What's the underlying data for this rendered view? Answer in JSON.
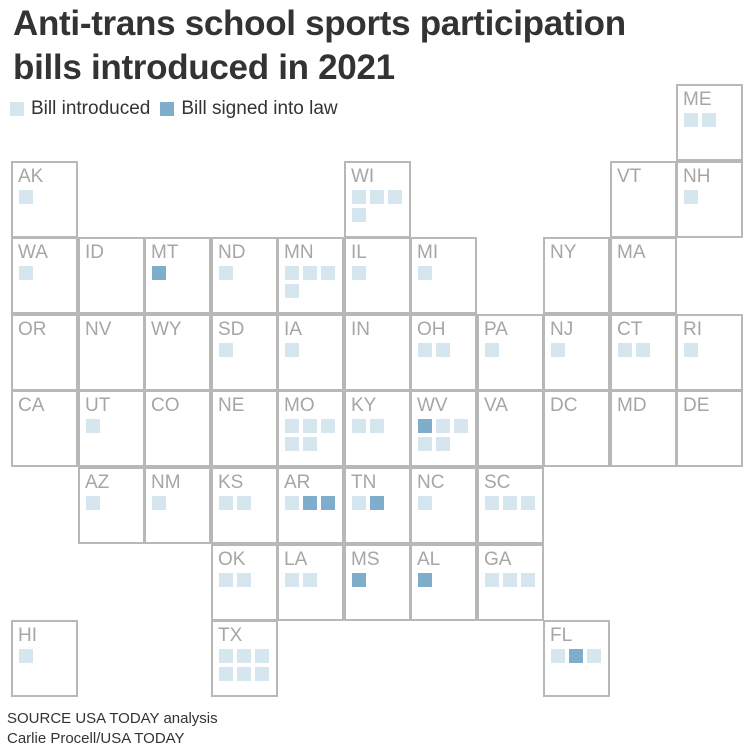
{
  "title": "Anti-trans school sports participation bills introduced in 2021",
  "legend": {
    "introduced": "Bill introduced",
    "signed": "Bill signed into law"
  },
  "colors": {
    "introduced": "#d6e6ee",
    "signed": "#7faecc",
    "border": "#b8b8b8",
    "label": "#a6a6a6"
  },
  "states": [
    {
      "abbr": "ME",
      "row": 0,
      "col": 10,
      "bills": [
        "i",
        "i"
      ]
    },
    {
      "abbr": "AK",
      "row": 1,
      "col": 0,
      "bills": [
        "i"
      ]
    },
    {
      "abbr": "WI",
      "row": 1,
      "col": 5,
      "bills": [
        "i",
        "i",
        "i",
        "i"
      ]
    },
    {
      "abbr": "VT",
      "row": 1,
      "col": 9,
      "bills": []
    },
    {
      "abbr": "NH",
      "row": 1,
      "col": 10,
      "bills": [
        "i"
      ]
    },
    {
      "abbr": "WA",
      "row": 2,
      "col": 0,
      "bills": [
        "i"
      ]
    },
    {
      "abbr": "ID",
      "row": 2,
      "col": 1,
      "bills": []
    },
    {
      "abbr": "MT",
      "row": 2,
      "col": 2,
      "bills": [
        "s"
      ]
    },
    {
      "abbr": "ND",
      "row": 2,
      "col": 3,
      "bills": [
        "i"
      ]
    },
    {
      "abbr": "MN",
      "row": 2,
      "col": 4,
      "bills": [
        "i",
        "i",
        "i",
        "i"
      ]
    },
    {
      "abbr": "IL",
      "row": 2,
      "col": 5,
      "bills": [
        "i"
      ]
    },
    {
      "abbr": "MI",
      "row": 2,
      "col": 6,
      "bills": [
        "i"
      ]
    },
    {
      "abbr": "NY",
      "row": 2,
      "col": 8,
      "bills": []
    },
    {
      "abbr": "MA",
      "row": 2,
      "col": 9,
      "bills": []
    },
    {
      "abbr": "OR",
      "row": 3,
      "col": 0,
      "bills": []
    },
    {
      "abbr": "NV",
      "row": 3,
      "col": 1,
      "bills": []
    },
    {
      "abbr": "WY",
      "row": 3,
      "col": 2,
      "bills": []
    },
    {
      "abbr": "SD",
      "row": 3,
      "col": 3,
      "bills": [
        "i"
      ]
    },
    {
      "abbr": "IA",
      "row": 3,
      "col": 4,
      "bills": [
        "i"
      ]
    },
    {
      "abbr": "IN",
      "row": 3,
      "col": 5,
      "bills": []
    },
    {
      "abbr": "OH",
      "row": 3,
      "col": 6,
      "bills": [
        "i",
        "i"
      ]
    },
    {
      "abbr": "PA",
      "row": 3,
      "col": 7,
      "bills": [
        "i"
      ]
    },
    {
      "abbr": "NJ",
      "row": 3,
      "col": 8,
      "bills": [
        "i"
      ]
    },
    {
      "abbr": "CT",
      "row": 3,
      "col": 9,
      "bills": [
        "i",
        "i"
      ]
    },
    {
      "abbr": "RI",
      "row": 3,
      "col": 10,
      "bills": [
        "i"
      ]
    },
    {
      "abbr": "CA",
      "row": 4,
      "col": 0,
      "bills": []
    },
    {
      "abbr": "UT",
      "row": 4,
      "col": 1,
      "bills": [
        "i"
      ]
    },
    {
      "abbr": "CO",
      "row": 4,
      "col": 2,
      "bills": []
    },
    {
      "abbr": "NE",
      "row": 4,
      "col": 3,
      "bills": []
    },
    {
      "abbr": "MO",
      "row": 4,
      "col": 4,
      "bills": [
        "i",
        "i",
        "i",
        "i",
        "i"
      ]
    },
    {
      "abbr": "KY",
      "row": 4,
      "col": 5,
      "bills": [
        "i",
        "i"
      ]
    },
    {
      "abbr": "WV",
      "row": 4,
      "col": 6,
      "bills": [
        "s",
        "i",
        "i",
        "i",
        "i"
      ]
    },
    {
      "abbr": "VA",
      "row": 4,
      "col": 7,
      "bills": []
    },
    {
      "abbr": "DC",
      "row": 4,
      "col": 8,
      "bills": []
    },
    {
      "abbr": "MD",
      "row": 4,
      "col": 9,
      "bills": []
    },
    {
      "abbr": "DE",
      "row": 4,
      "col": 10,
      "bills": []
    },
    {
      "abbr": "AZ",
      "row": 5,
      "col": 1,
      "bills": [
        "i"
      ]
    },
    {
      "abbr": "NM",
      "row": 5,
      "col": 2,
      "bills": [
        "i"
      ]
    },
    {
      "abbr": "KS",
      "row": 5,
      "col": 3,
      "bills": [
        "i",
        "i"
      ]
    },
    {
      "abbr": "AR",
      "row": 5,
      "col": 4,
      "bills": [
        "i",
        "s",
        "s"
      ]
    },
    {
      "abbr": "TN",
      "row": 5,
      "col": 5,
      "bills": [
        "i",
        "s"
      ]
    },
    {
      "abbr": "NC",
      "row": 5,
      "col": 6,
      "bills": [
        "i"
      ]
    },
    {
      "abbr": "SC",
      "row": 5,
      "col": 7,
      "bills": [
        "i",
        "i",
        "i"
      ]
    },
    {
      "abbr": "OK",
      "row": 6,
      "col": 3,
      "bills": [
        "i",
        "i"
      ]
    },
    {
      "abbr": "LA",
      "row": 6,
      "col": 4,
      "bills": [
        "i",
        "i"
      ]
    },
    {
      "abbr": "MS",
      "row": 6,
      "col": 5,
      "bills": [
        "s"
      ]
    },
    {
      "abbr": "AL",
      "row": 6,
      "col": 6,
      "bills": [
        "s"
      ]
    },
    {
      "abbr": "GA",
      "row": 6,
      "col": 7,
      "bills": [
        "i",
        "i",
        "i"
      ]
    },
    {
      "abbr": "HI",
      "row": 7,
      "col": 0,
      "bills": [
        "i"
      ]
    },
    {
      "abbr": "TX",
      "row": 7,
      "col": 3,
      "bills": [
        "i",
        "i",
        "i",
        "i",
        "i",
        "i"
      ]
    },
    {
      "abbr": "FL",
      "row": 7,
      "col": 8,
      "bills": [
        "i",
        "s",
        "i"
      ]
    }
  ],
  "footer": {
    "source": "SOURCE USA TODAY analysis",
    "credit": "Carlie Procell/USA TODAY"
  }
}
